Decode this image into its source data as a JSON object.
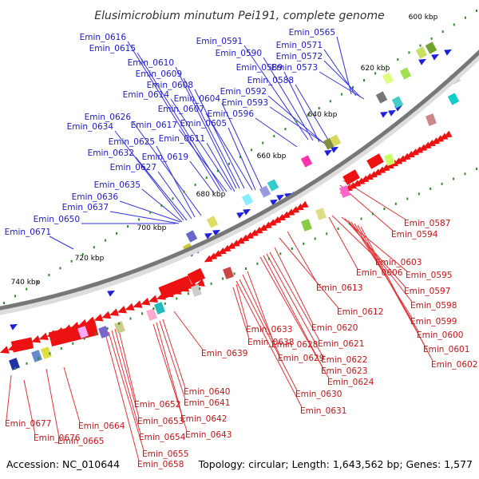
{
  "title": "Elusimicrobium minutum Pei191, complete genome",
  "footer": {
    "accession": "Accession: NC_010644",
    "summary": "Topology: circular; Length: 1,643,562 bp; Genes: 1,577"
  },
  "colors": {
    "forward_strand": "#1f1fdd",
    "forward_label": "#1a1acc",
    "reverse_strand": "#ee1111",
    "reverse_label": "#cc1111",
    "backbone": "#777777",
    "tick_marker": "#2e8b2e"
  },
  "ticks": [
    "600 kbp",
    "620 kbp",
    "640 kbp",
    "660 kbp",
    "680 kbp",
    "700 kbp",
    "720 kbp",
    "740 kbp"
  ],
  "forward_genes": [
    "Emin_0565",
    "Emin_0571",
    "Emin_0572",
    "Emin_0573",
    "Emin_0588",
    "Emin_0589",
    "Emin_0590",
    "Emin_0591",
    "Emin_0592",
    "Emin_0593",
    "Emin_0596",
    "Emin_0604",
    "Emin_0605",
    "Emin_0607",
    "Emin_0608",
    "Emin_0609",
    "Emin_0610",
    "Emin_0611",
    "Emin_0614",
    "Emin_0615",
    "Emin_0616",
    "Emin_0617",
    "Emin_0619",
    "Emin_0625",
    "Emin_0626",
    "Emin_0627",
    "Emin_0632",
    "Emin_0634",
    "Emin_0635",
    "Emin_0636",
    "Emin_0637",
    "Emin_0650",
    "Emin_0671"
  ],
  "reverse_genes": [
    "Emin_0587",
    "Emin_0594",
    "Emin_0603",
    "Emin_0606",
    "Emin_0595",
    "Emin_0597",
    "Emin_0598",
    "Emin_0599",
    "Emin_0600",
    "Emin_0601",
    "Emin_0602",
    "Emin_0613",
    "Emin_0612",
    "Emin_0620",
    "Emin_0621",
    "Emin_0622",
    "Emin_0623",
    "Emin_0624",
    "Emin_0633",
    "Emin_0638",
    "Emin_0628",
    "Emin_0629",
    "Emin_0630",
    "Emin_0631",
    "Emin_0639",
    "Emin_0640",
    "Emin_0641",
    "Emin_0642",
    "Emin_0643",
    "Emin_0652",
    "Emin_0653",
    "Emin_0654",
    "Emin_0655",
    "Emin_0658",
    "Emin_0664",
    "Emin_0665",
    "Emin_0676",
    "Emin_0677"
  ]
}
